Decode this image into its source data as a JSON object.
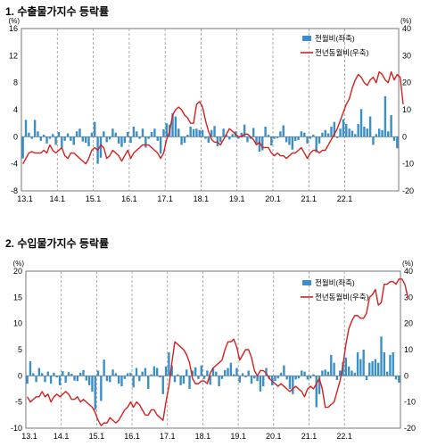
{
  "chart_data": [
    {
      "type": "bar",
      "title": "1. 수출물가지수 등락률",
      "left_unit": "(%)",
      "right_unit": "(%)",
      "ylim_left": [
        -8,
        16
      ],
      "ylim_right": [
        -20,
        40
      ],
      "left_ticks": [
        "16",
        "12",
        "8",
        "4",
        "0",
        "-4",
        "-8"
      ],
      "right_ticks": [
        "40",
        "30",
        "20",
        "10",
        "0",
        "-10",
        "-20"
      ],
      "x_ticks": [
        "13.1",
        "14.1",
        "15.1",
        "16.1",
        "17.1",
        "18.1",
        "19.1",
        "20.1",
        "21.1",
        "22.1"
      ],
      "grid": "dashed vertical lines at each January",
      "legend_position": "top-right",
      "series": [
        {
          "name": "전월비(좌축)",
          "axis": "left",
          "kind": "bar",
          "values": [
            -3.2,
            2.5,
            0.6,
            -0.3,
            2.5,
            0.8,
            -0.6,
            0.3,
            -1.0,
            -0.3,
            0.4,
            -1.2,
            0.7,
            -1.6,
            -0.6,
            0.5,
            -0.6,
            -1.2,
            0.8,
            1.2,
            -0.7,
            -0.9,
            -1.4,
            0.6,
            2.2,
            -4.0,
            -3.1,
            0.8,
            -0.8,
            -0.4,
            1.2,
            0.6,
            -1.0,
            -1.5,
            -0.9,
            0.7,
            -0.9,
            1.5,
            0.8,
            -0.3,
            1.2,
            -1.6,
            -0.3,
            0.7,
            1.2,
            -0.6,
            -2.5,
            1.1,
            2.0,
            1.8,
            3.5,
            3.0,
            1.2,
            -1.2,
            -0.9,
            0.3,
            1.5,
            1.1,
            1.2,
            1.0,
            1.0,
            -0.3,
            -0.9,
            1.0,
            1.6,
            -1.4,
            -0.8,
            1.2,
            0.3,
            -0.4,
            0.4,
            0.8,
            -0.3,
            0.6,
            1.8,
            -0.8,
            -0.3,
            1.3,
            -1.0,
            -2.2,
            -2.0,
            1.5,
            0.3,
            -1.3,
            -0.3,
            -0.2,
            0.8,
            1.7,
            -0.8,
            -1.2,
            -1.9,
            -0.6,
            -0.5,
            0.8,
            0.6,
            -1.0,
            -0.3,
            0.3,
            -2.3,
            -1.0,
            0.6,
            1.0,
            0.5,
            1.5,
            2.2,
            -0.2,
            1.2,
            2.6,
            1.9,
            1.2,
            0.9,
            0.4,
            1.9,
            4.1,
            1.5,
            1.2,
            3.0,
            -1.2,
            0.4,
            1.2,
            1.0,
            6.0,
            0.8,
            3.2,
            -0.6,
            -1.7
          ]
        },
        {
          "name": "전년동월비(우축)",
          "axis": "right",
          "kind": "line",
          "values": [
            -10,
            -8,
            -6,
            -5.5,
            -6,
            -6,
            -6,
            -5,
            -6,
            -3,
            -5,
            -6,
            -5,
            -4,
            -7,
            -8,
            -6,
            -6,
            -7,
            -8,
            -9,
            -10,
            -8,
            -5,
            -4,
            -5,
            -3,
            -4,
            -8,
            -7,
            -5,
            -6,
            -7,
            -9,
            -7,
            -5,
            -8,
            -6,
            -5,
            -4,
            -3,
            -3,
            -3,
            -4,
            -5,
            -6,
            -8,
            -6,
            -1,
            2,
            8,
            10,
            11,
            10,
            8,
            7,
            5,
            5,
            12,
            13,
            11,
            6,
            2,
            -1,
            -2,
            -2,
            -3,
            -1,
            1,
            3,
            2,
            1,
            0,
            0,
            1,
            1,
            0,
            -1,
            -3,
            -2,
            -4,
            -4,
            -4,
            -6,
            -7,
            -6,
            -7,
            -7,
            -8,
            -7,
            -6,
            -6,
            -5,
            -4,
            -6,
            -8,
            -6,
            -5,
            -5,
            -6,
            -5,
            -5,
            -3,
            -1,
            1,
            3,
            6,
            9,
            12,
            14,
            18,
            21,
            23,
            22,
            20,
            19,
            21,
            22,
            20,
            24,
            23,
            21,
            20,
            24,
            21,
            23,
            22,
            12
          ]
        }
      ]
    },
    {
      "type": "bar",
      "title": "2. 수입물가지수 등락률",
      "left_unit": "(%)",
      "right_unit": "(%)",
      "ylim_left": [
        -10,
        20
      ],
      "ylim_right": [
        -20,
        40
      ],
      "left_ticks": [
        "20",
        "15",
        "10",
        "5",
        "0",
        "-5",
        "-10"
      ],
      "right_ticks": [
        "40",
        "30",
        "20",
        "10",
        "0",
        "-10",
        "-20"
      ],
      "x_ticks": [
        "13.1",
        "14.1",
        "15.1",
        "16.1",
        "17.1",
        "18.1",
        "19.1",
        "20.1",
        "21.1",
        "22.1"
      ],
      "grid": "dashed vertical lines at each January",
      "legend_position": "top-right",
      "series": [
        {
          "name": "전월비(좌축)",
          "axis": "left",
          "kind": "bar",
          "values": [
            -1.5,
            2.8,
            0.5,
            -1.2,
            1.5,
            0.5,
            -1.2,
            0.8,
            -1.5,
            0.6,
            -0.3,
            -1.8,
            0.9,
            -1.3,
            0.7,
            0.4,
            -0.9,
            -1.0,
            0.6,
            1.1,
            -0.9,
            -1.8,
            -3.0,
            -6.5,
            1.0,
            -4.8,
            3.1,
            -1.0,
            -1.2,
            1.2,
            0.5,
            -1.5,
            -2.0,
            -0.6,
            0.5,
            0.6,
            -2.2,
            1.5,
            -1.0,
            0.8,
            1.5,
            -2.5,
            0.3,
            1.8,
            1.5,
            -0.3,
            -3.5,
            1.8,
            4.5,
            2.0,
            -1.2,
            0.3,
            -1.8,
            -1.5,
            1.2,
            -2.5,
            1.0,
            1.6,
            -0.6,
            2.0,
            -0.6,
            1.0,
            -1.7,
            1.5,
            0.8,
            -2.0,
            -0.6,
            1.1,
            1.5,
            2.5,
            0.3,
            1.5,
            -1.3,
            0.5,
            -0.3,
            1.0,
            -1.5,
            -0.5,
            -1.0,
            -3.0,
            -2.0,
            1.5,
            -0.6,
            -1.8,
            -1.0,
            -0.5,
            0.6,
            2.0,
            -0.7,
            -2.5,
            -3.5,
            -0.7,
            -0.5,
            1.0,
            0.8,
            -0.7,
            -0.5,
            0.3,
            -6.0,
            -3.5,
            1.0,
            1.2,
            0.8,
            4.0,
            2.5,
            -0.8,
            1.0,
            2.6,
            3.5,
            1.8,
            1.0,
            0.6,
            4.5,
            3.2,
            5.0,
            -0.8,
            2.5,
            2.8,
            3.2,
            2.5,
            7.5,
            4.5,
            0.8,
            4.0,
            4.5,
            -0.7,
            -1.3
          ]
        },
        {
          "name": "전년동월비(우축)",
          "axis": "right",
          "kind": "line",
          "values": [
            -8,
            -10,
            -9,
            -8,
            -8,
            -6,
            -8,
            -7,
            -10,
            -8,
            -7,
            -8,
            -7,
            -6,
            -7,
            -9,
            -9,
            -8,
            -10,
            -9,
            -10,
            -11,
            -12,
            -14,
            -17,
            -19,
            -18,
            -18,
            -16,
            -17,
            -18,
            -17,
            -15,
            -13,
            -12,
            -10,
            -12,
            -10,
            -11,
            -13,
            -15,
            -15,
            -13,
            -13,
            -15,
            -16,
            -17,
            -10,
            -4,
            5,
            13,
            12,
            11,
            10,
            8,
            5,
            -1,
            -3,
            -3,
            -2,
            -2,
            -3,
            1,
            3,
            4,
            5,
            6,
            10,
            13,
            13,
            14,
            11,
            6,
            8,
            10,
            10,
            7,
            2,
            0,
            2,
            2,
            1,
            -1,
            -2,
            -3,
            -4,
            -3,
            -4,
            -5,
            -6,
            -5,
            -4,
            -5,
            -6,
            -8,
            -5,
            -4,
            -5,
            -3,
            -1,
            -5,
            -12,
            -12,
            -11,
            -10,
            -6,
            -2,
            4,
            12,
            18,
            21,
            23,
            23,
            22,
            22,
            24,
            30,
            31,
            33,
            27,
            28,
            35,
            35,
            36,
            36,
            35,
            37,
            37,
            35,
            30
          ]
        }
      ]
    },
    {
      "note": ""
    }
  ],
  "legend_swatch_colors": {
    "bar": "#3a8fc8",
    "line": "#d42020"
  },
  "axis_line_colors": {
    "frame": "#777777",
    "grid": "#999999"
  }
}
